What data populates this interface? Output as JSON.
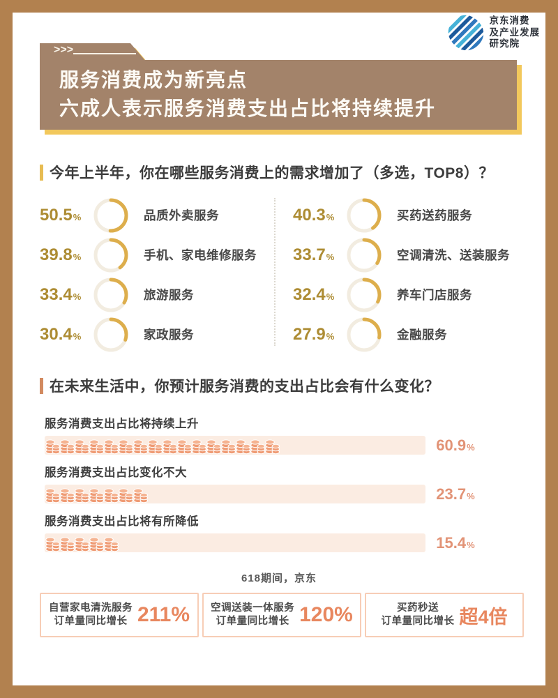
{
  "logo": {
    "name_line1": "京东消费",
    "name_line2": "及产业发展",
    "name_line3": "研究院"
  },
  "banner": {
    "arrows": ">>>",
    "title_line1": "服务消费成为新亮点",
    "title_line2": "六成人表示服务消费支出占比将持续提升"
  },
  "labels": {
    "percent": "%"
  },
  "chart_data": [
    {
      "type": "donut-grid",
      "title": "今年上半年，你在哪些服务消费上的需求增加了（多选，TOP8）？",
      "unit": "%",
      "accent_color": "#ddae4c",
      "items": [
        {
          "label": "品质外卖服务",
          "pct": 50.5
        },
        {
          "label": "手机、家电维修服务",
          "pct": 39.8
        },
        {
          "label": "旅游服务",
          "pct": 33.4
        },
        {
          "label": "家政服务",
          "pct": 30.4
        },
        {
          "label": "买药送药服务",
          "pct": 40.3
        },
        {
          "label": "空调清洗、送装服务",
          "pct": 33.7
        },
        {
          "label": "养车门店服务",
          "pct": 32.4
        },
        {
          "label": "金融服务",
          "pct": 27.9
        }
      ]
    },
    {
      "type": "bar",
      "title": "在未来生活中，你预计服务消费的支出占比会有什么变化？",
      "unit": "%",
      "xlim": [
        0,
        100
      ],
      "bar_color": "#ef9b74",
      "track_color": "#fbece2",
      "rows": [
        {
          "label": "服务消费支出占比将持续上升",
          "pct": 60.9
        },
        {
          "label": "服务消费支出占比变化不大",
          "pct": 23.7
        },
        {
          "label": "服务消费支出占比将有所降低",
          "pct": 15.4
        }
      ]
    }
  ],
  "footnote": "618期间，京东",
  "stats": [
    {
      "line1": "自营家电清洗服务",
      "line2": "订单量同比增长",
      "value": "211%"
    },
    {
      "line1": "空调送装一体服务",
      "line2": "订单量同比增长",
      "value": "120%"
    },
    {
      "line1": "买药秒送",
      "line2": "订单量同比增长",
      "value": "超4倍"
    }
  ],
  "colors": {
    "frame": "#b2814f",
    "banner_bg": "#a3836a",
    "banner_shadow": "#f2c85c",
    "gold_accent": "#e7bc52",
    "gold_number": "#ad8c33",
    "orange_accent": "#d28a60",
    "bar_percent": "#e29376",
    "stat_value": "#e8875f"
  }
}
